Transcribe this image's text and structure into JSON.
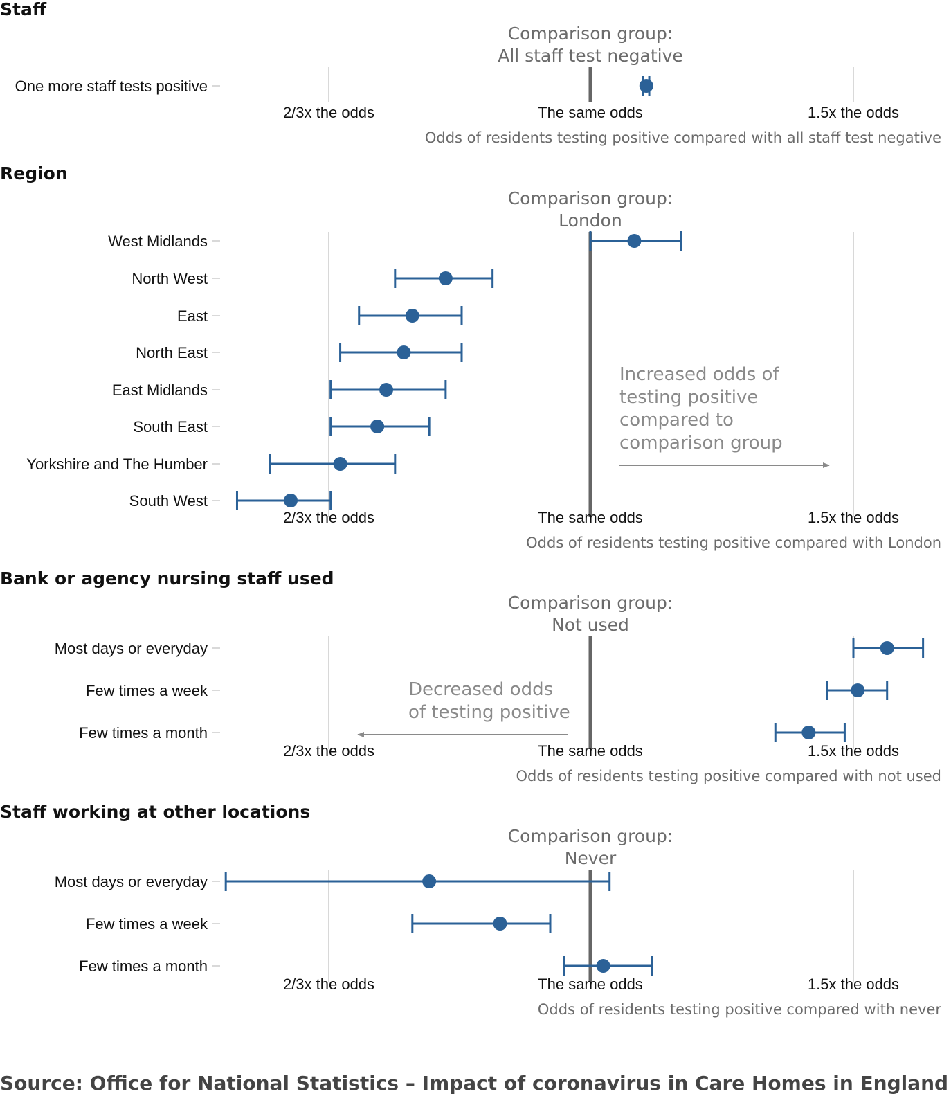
{
  "colors": {
    "point": "#2b6197",
    "reference_line": "#666666",
    "grid": "#cccccc",
    "annotation": "#8a8a8a"
  },
  "source": "Source: Office for National Statistics – Impact of coronavirus in Care Homes in England",
  "chart_data": [
    {
      "type": "forest",
      "title": "Staff",
      "comparison_label": [
        "Comparison group:",
        "All staff test negative"
      ],
      "xlabel": "Odds of residents testing positive compared with all staff test negative",
      "x_scale": "log",
      "xlim": [
        0.5,
        1.75
      ],
      "ticks": [
        {
          "value": 0.6667,
          "label": "2/3x the odds"
        },
        {
          "value": 1.0,
          "label": "The same odds"
        },
        {
          "value": 1.5,
          "label": "1.5x the odds"
        }
      ],
      "categories": [
        "One more staff tests positive"
      ],
      "estimates": [
        1.09
      ],
      "ci_lower": [
        1.085
      ],
      "ci_upper": [
        1.095
      ]
    },
    {
      "type": "forest",
      "title": "Region",
      "comparison_label": [
        "Comparison group:",
        "London"
      ],
      "xlabel": "Odds of residents testing positive compared with London",
      "x_scale": "log",
      "xlim": [
        0.5,
        1.75
      ],
      "ticks": [
        {
          "value": 0.6667,
          "label": "2/3x the odds"
        },
        {
          "value": 1.0,
          "label": "The same odds"
        },
        {
          "value": 1.5,
          "label": "1.5x the odds"
        }
      ],
      "categories": [
        "West Midlands",
        "North West",
        "East",
        "North East",
        "East Midlands",
        "South East",
        "Yorkshire and The Humber",
        "South West"
      ],
      "estimates": [
        1.07,
        0.8,
        0.76,
        0.75,
        0.73,
        0.72,
        0.68,
        0.63
      ],
      "ci_lower": [
        1.0,
        0.74,
        0.7,
        0.68,
        0.67,
        0.67,
        0.61,
        0.58
      ],
      "ci_upper": [
        1.15,
        0.86,
        0.82,
        0.82,
        0.8,
        0.78,
        0.74,
        0.67
      ]
    },
    {
      "type": "forest",
      "title": "Bank or agency nursing staff used",
      "comparison_label": [
        "Comparison group:",
        "Not used"
      ],
      "xlabel": "Odds of residents testing positive compared with not used",
      "x_scale": "log",
      "xlim": [
        0.5,
        1.75
      ],
      "ticks": [
        {
          "value": 0.6667,
          "label": "2/3x the odds"
        },
        {
          "value": 1.0,
          "label": "The same odds"
        },
        {
          "value": 1.5,
          "label": "1.5x the odds"
        }
      ],
      "annotation": {
        "text": [
          "Decreased odds",
          "of testing positive"
        ],
        "direction": "left"
      },
      "categories": [
        "Most days or everyday",
        "Few times a week",
        "Few times a month"
      ],
      "estimates": [
        1.58,
        1.51,
        1.4
      ],
      "ci_lower": [
        1.5,
        1.44,
        1.33
      ],
      "ci_upper": [
        1.67,
        1.58,
        1.48
      ]
    },
    {
      "type": "forest",
      "title": "Staff working at other locations",
      "comparison_label": [
        "Comparison group:",
        "Never"
      ],
      "xlabel": "Odds of residents testing positive compared with never",
      "x_scale": "log",
      "xlim": [
        0.5,
        1.75
      ],
      "ticks": [
        {
          "value": 0.6667,
          "label": "2/3x the odds"
        },
        {
          "value": 1.0,
          "label": "The same odds"
        },
        {
          "value": 1.5,
          "label": "1.5x the odds"
        }
      ],
      "categories": [
        "Most days or everyday",
        "Few times a week",
        "Few times a month"
      ],
      "estimates": [
        0.78,
        0.87,
        1.02
      ],
      "ci_lower": [
        0.57,
        0.76,
        0.96
      ],
      "ci_upper": [
        1.03,
        0.94,
        1.1
      ]
    }
  ],
  "region_annotation": {
    "text": [
      "Increased odds of",
      "testing positive",
      "compared to",
      "comparison group"
    ],
    "direction": "right"
  }
}
